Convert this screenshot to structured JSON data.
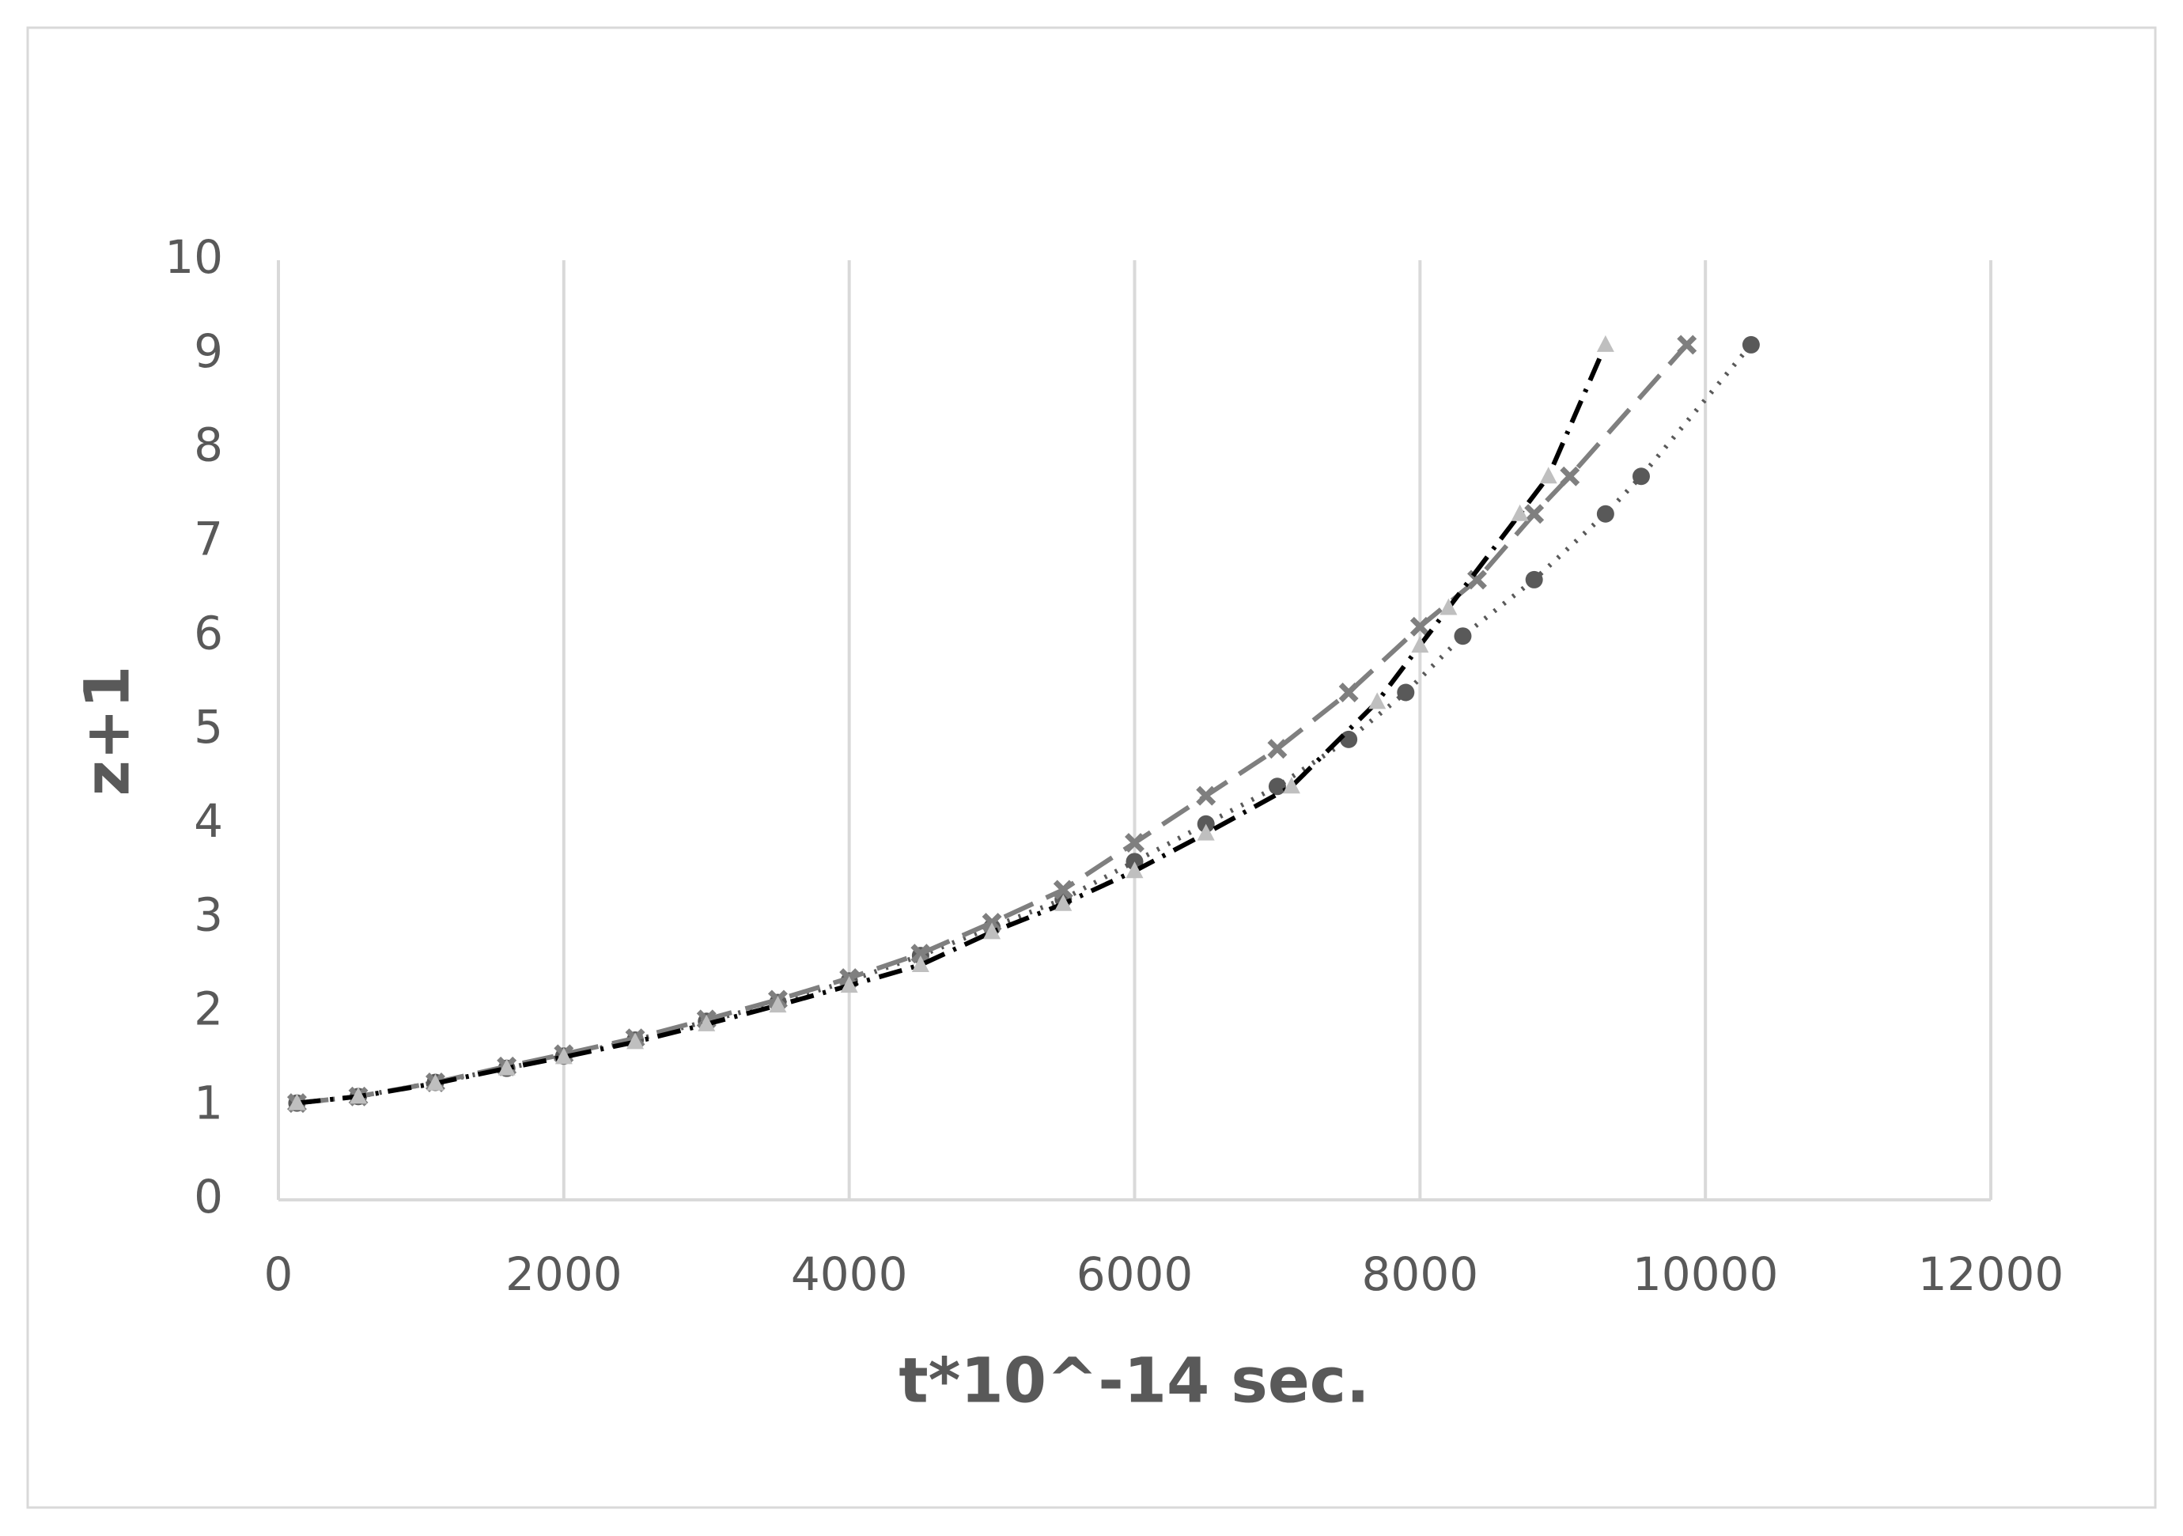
{
  "chart_data": {
    "type": "scatter",
    "xlabel": "t*10^-14 sec.",
    "ylabel": "z+1",
    "xlim": [
      0,
      12000
    ],
    "ylim": [
      0,
      10
    ],
    "xticks": [
      0,
      2000,
      4000,
      6000,
      8000,
      10000,
      12000
    ],
    "yticks": [
      0,
      1,
      2,
      3,
      4,
      5,
      6,
      7,
      8,
      9,
      10
    ],
    "grid": "x",
    "series": [
      {
        "color": "#595959",
        "marker": "circle",
        "line_style": "dotted",
        "x": [
          130,
          560,
          1100,
          1600,
          2000,
          2500,
          3000,
          3500,
          4000,
          4500,
          5000,
          5500,
          6000,
          6500,
          7000,
          7500,
          7900,
          8300,
          8800,
          9300,
          9550,
          10320
        ],
        "values": [
          1.03,
          1.1,
          1.25,
          1.4,
          1.53,
          1.7,
          1.9,
          2.1,
          2.33,
          2.6,
          2.9,
          3.2,
          3.6,
          4.0,
          4.4,
          4.9,
          5.4,
          6.0,
          6.6,
          7.3,
          7.7,
          9.1
        ]
      },
      {
        "color": "#7f7f7f",
        "marker": "x",
        "line_style": "dashed",
        "x": [
          130,
          560,
          1100,
          1600,
          2000,
          2500,
          3000,
          3500,
          4000,
          4500,
          5000,
          5500,
          6000,
          6500,
          7000,
          7500,
          8000,
          8400,
          8800,
          9050,
          9870
        ],
        "values": [
          1.03,
          1.1,
          1.25,
          1.42,
          1.55,
          1.72,
          1.92,
          2.13,
          2.36,
          2.62,
          2.95,
          3.3,
          3.8,
          4.3,
          4.8,
          5.4,
          6.1,
          6.6,
          7.3,
          7.7,
          9.1
        ]
      },
      {
        "color": "#bfbfbf",
        "marker": "triangle",
        "line_style": "dashdot",
        "x": [
          130,
          560,
          1100,
          1600,
          2000,
          2500,
          3000,
          3500,
          4000,
          4500,
          5000,
          5500,
          6000,
          6500,
          7100,
          7700,
          8000,
          8200,
          8700,
          8900,
          9300
        ],
        "values": [
          1.03,
          1.1,
          1.24,
          1.4,
          1.52,
          1.68,
          1.87,
          2.07,
          2.28,
          2.5,
          2.85,
          3.15,
          3.5,
          3.9,
          4.4,
          5.3,
          5.9,
          6.3,
          7.3,
          7.7,
          9.1
        ]
      }
    ]
  }
}
